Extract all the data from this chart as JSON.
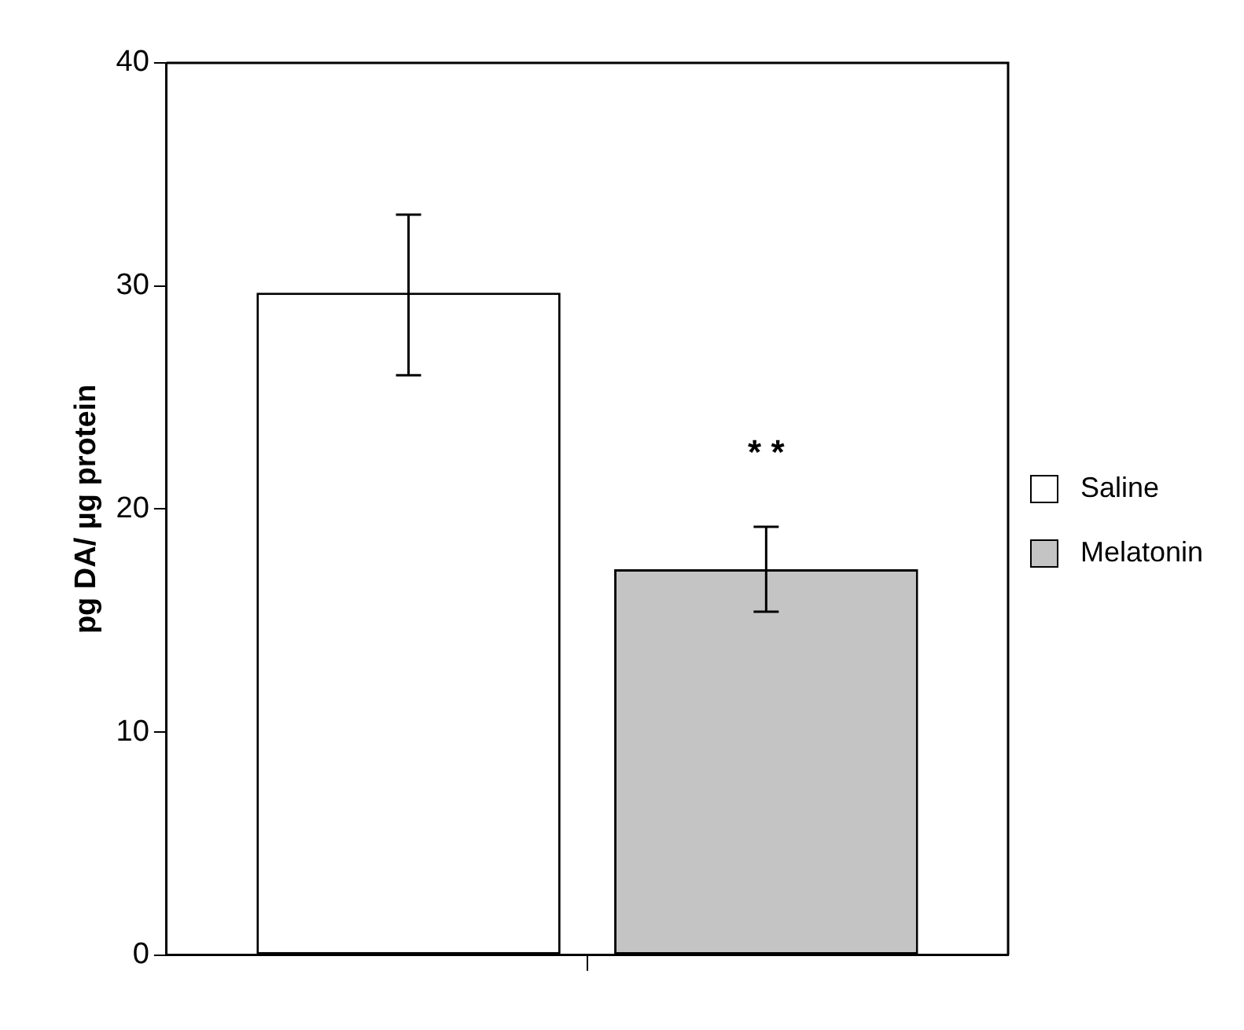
{
  "chart_data": {
    "type": "bar",
    "ylabel": "pg DA/ µg protein",
    "categories": [
      null
    ],
    "series": [
      {
        "name": "Saline",
        "color": "#ffffff",
        "values": [
          29.7
        ],
        "errors": [
          [
            26,
            33.2
          ]
        ]
      },
      {
        "name": "Melatonin",
        "color": "#c4c4c4",
        "values": [
          17.3
        ],
        "errors": [
          [
            15.4,
            19.2
          ]
        ]
      }
    ],
    "ylim": [
      0,
      40
    ],
    "yticks": [
      0,
      10,
      20,
      30,
      40
    ],
    "grid": false,
    "legend": "right",
    "annotations": [
      "* *"
    ]
  }
}
